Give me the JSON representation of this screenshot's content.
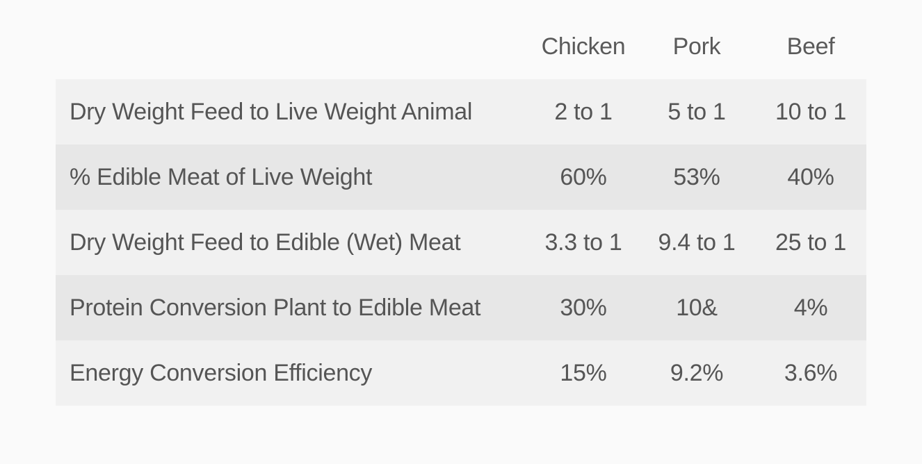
{
  "table": {
    "columns": [
      "",
      "Chicken",
      "Pork",
      "Beef"
    ],
    "rows": [
      {
        "label": "Dry Weight Feed to Live Weight Animal",
        "chicken": "2 to 1",
        "pork": "5 to 1",
        "beef": "10 to 1"
      },
      {
        "label": "% Edible Meat of Live Weight",
        "chicken": "60%",
        "pork": "53%",
        "beef": "40%"
      },
      {
        "label": "Dry Weight Feed to Edible (Wet) Meat",
        "chicken": "3.3 to 1",
        "pork": "9.4 to 1",
        "beef": "25 to 1"
      },
      {
        "label": "Protein Conversion Plant to Edible Meat",
        "chicken": "30%",
        "pork": "10&",
        "beef": "4%"
      },
      {
        "label": "Energy Conversion Efficiency",
        "chicken": "15%",
        "pork": "9.2%",
        "beef": "3.6%"
      }
    ]
  },
  "colors": {
    "page_background": "#fafafa",
    "row_light": "#f1f1f1",
    "row_dark": "#e7e7e7",
    "text": "#555555"
  }
}
